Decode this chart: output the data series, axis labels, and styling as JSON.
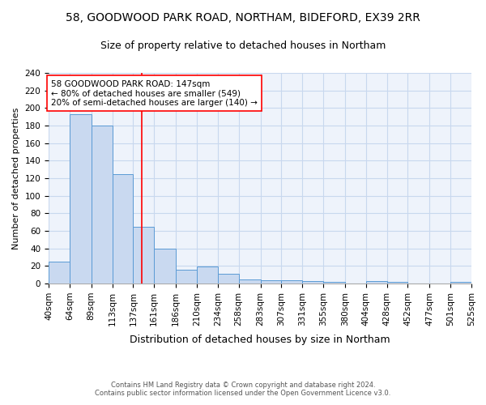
{
  "title1": "58, GOODWOOD PARK ROAD, NORTHAM, BIDEFORD, EX39 2RR",
  "title2": "Size of property relative to detached houses in Northam",
  "xlabel": "Distribution of detached houses by size in Northam",
  "ylabel": "Number of detached properties",
  "bin_edges": [
    40,
    64,
    89,
    113,
    137,
    161,
    186,
    210,
    234,
    258,
    283,
    307,
    331,
    355,
    380,
    404,
    428,
    452,
    477,
    501,
    525
  ],
  "bar_heights": [
    25,
    193,
    180,
    125,
    65,
    40,
    16,
    19,
    11,
    5,
    4,
    4,
    3,
    2,
    0,
    3,
    2,
    0,
    0,
    2
  ],
  "bar_color": "#c9d9f0",
  "bar_edge_color": "#5b9bd5",
  "grid_color": "#c8d8ee",
  "background_color": "#eef3fb",
  "property_line_x": 147,
  "property_line_color": "red",
  "annotation_text": "58 GOODWOOD PARK ROAD: 147sqm\n← 80% of detached houses are smaller (549)\n20% of semi-detached houses are larger (140) →",
  "annotation_box_color": "white",
  "annotation_box_edge_color": "red",
  "ylim": [
    0,
    240
  ],
  "yticks": [
    0,
    20,
    40,
    60,
    80,
    100,
    120,
    140,
    160,
    180,
    200,
    220,
    240
  ],
  "footnote": "Contains HM Land Registry data © Crown copyright and database right 2024.\nContains public sector information licensed under the Open Government Licence v3.0.",
  "title1_fontsize": 10,
  "title2_fontsize": 9,
  "xlabel_fontsize": 9,
  "ylabel_fontsize": 8,
  "annotation_fontsize": 7.5,
  "tick_fontsize": 7.5,
  "footnote_fontsize": 6
}
